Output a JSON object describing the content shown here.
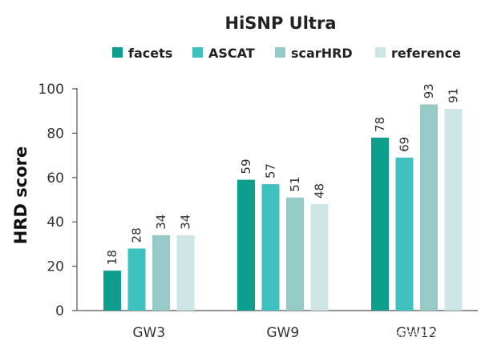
{
  "chart_data": {
    "type": "bar",
    "title": "HiSNP Ultra",
    "ylabel": "HRD score",
    "xlabel": "",
    "ylim": [
      0,
      100
    ],
    "yticks": [
      0,
      20,
      40,
      60,
      80,
      100
    ],
    "categories": [
      "GW3",
      "GW9",
      "GW12"
    ],
    "legend_position": "top",
    "grid": false,
    "series": [
      {
        "name": "facets",
        "color": "#0e9e8e",
        "values": [
          18,
          59,
          78
        ]
      },
      {
        "name": "ASCAT",
        "color": "#3fc1c0",
        "values": [
          28,
          57,
          69
        ]
      },
      {
        "name": "scarHRD",
        "color": "#96cac7",
        "values": [
          34,
          51,
          93
        ]
      },
      {
        "name": "reference",
        "color": "#cde6e5",
        "values": [
          34,
          48,
          91
        ]
      }
    ]
  },
  "watermark": {
    "text": "知乎 @钥石云科技"
  }
}
